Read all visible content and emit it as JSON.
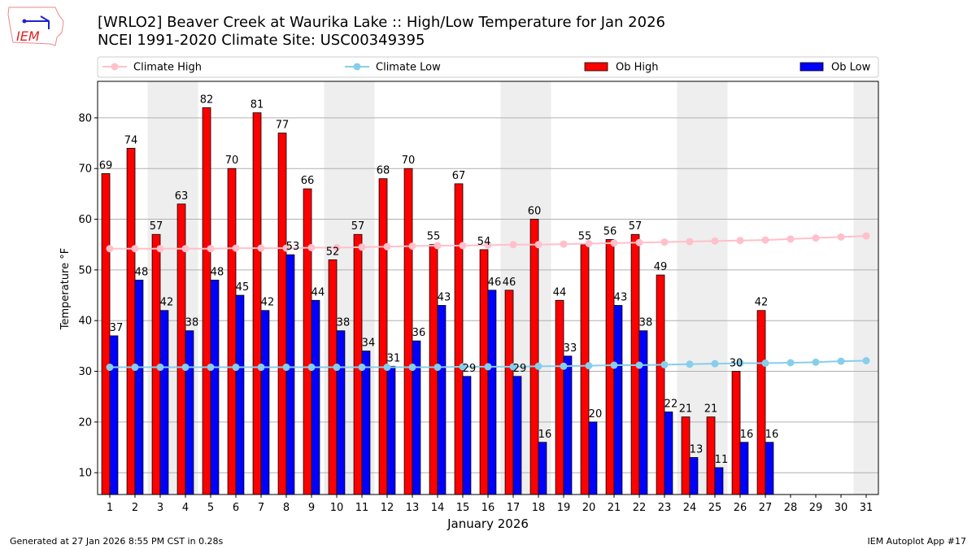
{
  "logo_text": "IEM",
  "title": {
    "line1": "[WRLO2] Beaver Creek at Waurika Lake :: High/Low Temperature for Jan 2026",
    "line2": "NCEI 1991-2020 Climate Site: USC00349395"
  },
  "footer": {
    "left": "Generated at 27 Jan 2026 8:55 PM CST in 0.28s",
    "right": "IEM Autoplot App #17"
  },
  "colors": {
    "ob_high": "#ff0000",
    "ob_low": "#0000ff",
    "climate_high": "#ffc0cb",
    "climate_low": "#87ceeb",
    "weekend": "#eeeeee"
  },
  "chart_data": {
    "type": "bar",
    "xlabel": "January 2026",
    "ylabel": "Temperature °F",
    "ylim": [
      5.7,
      87.2
    ],
    "yticks": [
      10,
      20,
      30,
      40,
      50,
      60,
      70,
      80
    ],
    "grid": true,
    "legend_position": "top",
    "x": [
      1,
      2,
      3,
      4,
      5,
      6,
      7,
      8,
      9,
      10,
      11,
      12,
      13,
      14,
      15,
      16,
      17,
      18,
      19,
      20,
      21,
      22,
      23,
      24,
      25,
      26,
      27,
      28,
      29,
      30,
      31
    ],
    "weekend_days": [
      3,
      4,
      10,
      11,
      17,
      18,
      24,
      25,
      31
    ],
    "series": [
      {
        "name": "Climate High",
        "kind": "line",
        "values": [
          54.2,
          54.2,
          54.2,
          54.2,
          54.2,
          54.3,
          54.3,
          54.3,
          54.4,
          54.4,
          54.5,
          54.6,
          54.7,
          54.8,
          54.8,
          54.9,
          55.0,
          55.0,
          55.1,
          55.2,
          55.3,
          55.4,
          55.5,
          55.6,
          55.7,
          55.8,
          55.9,
          56.1,
          56.3,
          56.5,
          56.7
        ]
      },
      {
        "name": "Climate Low",
        "kind": "line",
        "values": [
          30.8,
          30.8,
          30.8,
          30.8,
          30.8,
          30.8,
          30.8,
          30.8,
          30.8,
          30.8,
          30.8,
          30.8,
          30.8,
          30.8,
          30.9,
          30.9,
          30.9,
          31.0,
          31.0,
          31.1,
          31.2,
          31.2,
          31.3,
          31.4,
          31.5,
          31.6,
          31.6,
          31.7,
          31.8,
          32.0,
          32.1
        ]
      },
      {
        "name": "Ob High",
        "kind": "bar",
        "values": [
          69,
          74,
          57,
          63,
          82,
          70,
          81,
          77,
          66,
          52,
          57,
          68,
          70,
          55,
          67,
          54,
          46,
          60,
          44,
          55,
          56,
          57,
          49,
          21,
          21,
          30,
          42,
          null,
          null,
          null,
          null
        ]
      },
      {
        "name": "Ob Low",
        "kind": "bar",
        "values": [
          37,
          48,
          42,
          38,
          48,
          45,
          42,
          53,
          44,
          38,
          34,
          31,
          36,
          43,
          29,
          46,
          29,
          16,
          33,
          20,
          43,
          38,
          22,
          13,
          11,
          16,
          16,
          null,
          null,
          null,
          null
        ]
      }
    ]
  }
}
